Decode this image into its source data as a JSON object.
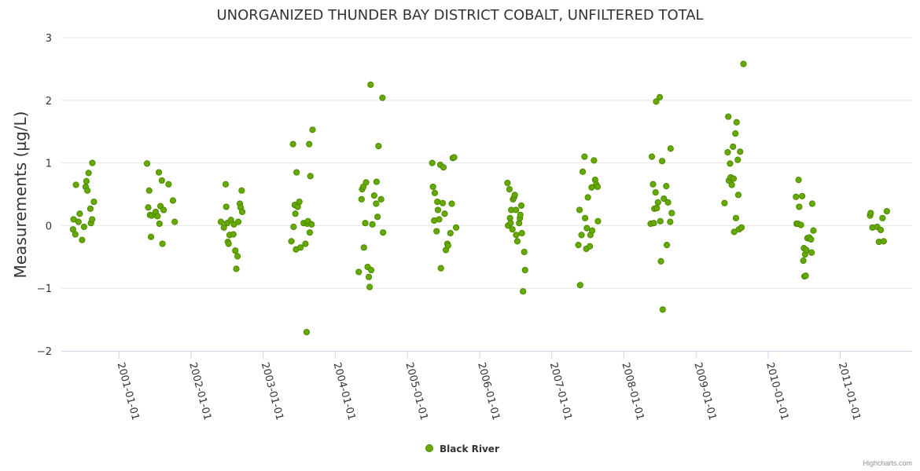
{
  "chart_data": {
    "type": "scatter",
    "title": "UNORGANIZED THUNDER BAY DISTRICT COBALT, UNFILTERED TOTAL",
    "ylabel": "Measurements (µg/L)",
    "xlabel": "",
    "ylim": [
      -2,
      3
    ],
    "yticks": [
      3,
      2,
      1,
      0,
      -1,
      -2
    ],
    "ytick_labels": [
      "3",
      "2",
      "1",
      "0",
      "−1",
      "−2"
    ],
    "xlim": [
      "2000-03-15",
      "2011-12-31"
    ],
    "xticks": [
      "2001-01-01",
      "2002-01-01",
      "2003-01-01",
      "2004-01-01",
      "2005-01-01",
      "2006-01-01",
      "2007-01-01",
      "2008-01-01",
      "2009-01-01",
      "2010-01-01",
      "2011-01-01"
    ],
    "grid": "horizontal",
    "legend_position": "bottom-center",
    "series": [
      {
        "name": "Black River",
        "color": "#66aa00",
        "points": [
          [
            "2000-05-13",
            -0.06
          ],
          [
            "2000-05-16",
            0.1
          ],
          [
            "2000-05-25",
            -0.14
          ],
          [
            "2000-05-28",
            0.65
          ],
          [
            "2000-06-10",
            0.06
          ],
          [
            "2000-06-16",
            0.19
          ],
          [
            "2000-06-28",
            -0.23
          ],
          [
            "2000-07-08",
            -0.02
          ],
          [
            "2000-07-16",
            0.62
          ],
          [
            "2000-07-20",
            0.71
          ],
          [
            "2000-07-25",
            0.56
          ],
          [
            "2000-07-31",
            0.84
          ],
          [
            "2000-08-09",
            0.27
          ],
          [
            "2000-08-12",
            0.04
          ],
          [
            "2000-08-18",
            0.1
          ],
          [
            "2000-08-19",
            1.0
          ],
          [
            "2000-08-27",
            0.38
          ],
          [
            "2001-05-23",
            0.99
          ],
          [
            "2001-05-29",
            0.29
          ],
          [
            "2001-06-03",
            0.56
          ],
          [
            "2001-06-07",
            0.17
          ],
          [
            "2001-06-12",
            -0.18
          ],
          [
            "2001-06-16",
            0.16
          ],
          [
            "2001-07-03",
            0.18
          ],
          [
            "2001-07-06",
            0.22
          ],
          [
            "2001-07-15",
            0.15
          ],
          [
            "2001-07-22",
            0.85
          ],
          [
            "2001-07-25",
            0.03
          ],
          [
            "2001-07-30",
            0.31
          ],
          [
            "2001-08-06",
            0.72
          ],
          [
            "2001-08-09",
            -0.29
          ],
          [
            "2001-08-15",
            0.25
          ],
          [
            "2001-09-09",
            0.66
          ],
          [
            "2001-10-01",
            0.4
          ],
          [
            "2001-10-10",
            0.06
          ],
          [
            "2002-06-01",
            0.06
          ],
          [
            "2002-06-16",
            -0.03
          ],
          [
            "2002-06-25",
            0.66
          ],
          [
            "2002-06-28",
            0.3
          ],
          [
            "2002-07-03",
            0.04
          ],
          [
            "2002-07-06",
            -0.26
          ],
          [
            "2002-07-10",
            -0.29
          ],
          [
            "2002-07-15",
            -0.15
          ],
          [
            "2002-07-22",
            0.09
          ],
          [
            "2002-08-03",
            -0.14
          ],
          [
            "2002-08-06",
            0.02
          ],
          [
            "2002-08-13",
            -0.4
          ],
          [
            "2002-08-18",
            -0.69
          ],
          [
            "2002-08-24",
            -0.49
          ],
          [
            "2002-08-28",
            0.06
          ],
          [
            "2002-09-05",
            0.35
          ],
          [
            "2002-09-09",
            0.29
          ],
          [
            "2002-09-14",
            0.56
          ],
          [
            "2002-09-17",
            0.22
          ],
          [
            "2003-05-24",
            -0.25
          ],
          [
            "2003-06-01",
            1.3
          ],
          [
            "2003-06-04",
            -0.02
          ],
          [
            "2003-06-10",
            0.33
          ],
          [
            "2003-06-13",
            0.19
          ],
          [
            "2003-06-16",
            -0.38
          ],
          [
            "2003-06-19",
            0.85
          ],
          [
            "2003-06-25",
            0.3
          ],
          [
            "2003-07-03",
            0.38
          ],
          [
            "2003-07-09",
            -0.35
          ],
          [
            "2003-07-25",
            0.04
          ],
          [
            "2003-08-03",
            -0.29
          ],
          [
            "2003-08-09",
            -1.7
          ],
          [
            "2003-08-12",
            0.03
          ],
          [
            "2003-08-16",
            0.07
          ],
          [
            "2003-08-22",
            1.3
          ],
          [
            "2003-08-25",
            -0.11
          ],
          [
            "2003-08-28",
            0.79
          ],
          [
            "2003-09-03",
            0.02
          ],
          [
            "2003-09-08",
            1.53
          ],
          [
            "2004-04-29",
            -0.74
          ],
          [
            "2004-05-13",
            0.42
          ],
          [
            "2004-05-16",
            0.58
          ],
          [
            "2004-05-22",
            0.62
          ],
          [
            "2004-05-25",
            -0.35
          ],
          [
            "2004-06-01",
            0.04
          ],
          [
            "2004-06-05",
            0.69
          ],
          [
            "2004-06-13",
            -0.66
          ],
          [
            "2004-06-19",
            -0.82
          ],
          [
            "2004-06-23",
            -0.98
          ],
          [
            "2004-06-28",
            2.25
          ],
          [
            "2004-07-01",
            -0.71
          ],
          [
            "2004-07-07",
            0.02
          ],
          [
            "2004-07-16",
            0.48
          ],
          [
            "2004-07-26",
            0.35
          ],
          [
            "2004-07-28",
            0.7
          ],
          [
            "2004-08-02",
            0.14
          ],
          [
            "2004-08-07",
            1.27
          ],
          [
            "2004-08-20",
            0.42
          ],
          [
            "2004-08-27",
            2.04
          ],
          [
            "2004-08-30",
            -0.11
          ],
          [
            "2005-05-06",
            1.0
          ],
          [
            "2005-05-10",
            0.62
          ],
          [
            "2005-05-16",
            0.08
          ],
          [
            "2005-05-19",
            0.52
          ],
          [
            "2005-05-28",
            -0.09
          ],
          [
            "2005-06-01",
            0.38
          ],
          [
            "2005-06-04",
            0.25
          ],
          [
            "2005-06-10",
            0.1
          ],
          [
            "2005-06-16",
            0.97
          ],
          [
            "2005-06-19",
            -0.68
          ],
          [
            "2005-06-28",
            0.36
          ],
          [
            "2005-07-02",
            0.93
          ],
          [
            "2005-07-08",
            0.19
          ],
          [
            "2005-07-14",
            -0.39
          ],
          [
            "2005-07-22",
            -0.29
          ],
          [
            "2005-07-25",
            -0.32
          ],
          [
            "2005-08-06",
            -0.12
          ],
          [
            "2005-08-13",
            0.35
          ],
          [
            "2005-08-18",
            1.08
          ],
          [
            "2005-08-25",
            1.09
          ],
          [
            "2005-09-04",
            -0.03
          ],
          [
            "2006-05-22",
            0.68
          ],
          [
            "2006-05-25",
            0.0
          ],
          [
            "2006-06-01",
            0.58
          ],
          [
            "2006-06-04",
            0.12
          ],
          [
            "2006-06-07",
            0.04
          ],
          [
            "2006-06-10",
            0.25
          ],
          [
            "2006-06-16",
            -0.06
          ],
          [
            "2006-06-19",
            0.42
          ],
          [
            "2006-06-24",
            0.45
          ],
          [
            "2006-06-28",
            0.49
          ],
          [
            "2006-07-04",
            0.25
          ],
          [
            "2006-07-05",
            -0.15
          ],
          [
            "2006-07-11",
            -0.25
          ],
          [
            "2006-07-20",
            0.04
          ],
          [
            "2006-07-24",
            0.12
          ],
          [
            "2006-07-26",
            0.17
          ],
          [
            "2006-07-31",
            0.32
          ],
          [
            "2006-08-03",
            -0.12
          ],
          [
            "2006-08-09",
            -1.05
          ],
          [
            "2006-08-15",
            -0.42
          ],
          [
            "2006-08-19",
            -0.71
          ],
          [
            "2007-05-16",
            -0.31
          ],
          [
            "2007-05-22",
            0.25
          ],
          [
            "2007-05-25",
            -0.95
          ],
          [
            "2007-06-01",
            -0.15
          ],
          [
            "2007-06-07",
            0.86
          ],
          [
            "2007-06-16",
            1.1
          ],
          [
            "2007-06-19",
            0.12
          ],
          [
            "2007-06-25",
            -0.37
          ],
          [
            "2007-06-28",
            -0.04
          ],
          [
            "2007-07-03",
            0.45
          ],
          [
            "2007-07-13",
            -0.33
          ],
          [
            "2007-07-16",
            -0.15
          ],
          [
            "2007-07-22",
            0.61
          ],
          [
            "2007-07-25",
            -0.08
          ],
          [
            "2007-08-03",
            1.04
          ],
          [
            "2007-08-09",
            0.73
          ],
          [
            "2007-08-14",
            0.66
          ],
          [
            "2007-08-21",
            0.62
          ],
          [
            "2008-08-23",
            0.06
          ]
        ]
      }
    ]
  },
  "extra_points": [
    [
      "2007-08-23",
      0.07
    ],
    [
      "2008-05-16",
      0.03
    ],
    [
      "2008-05-22",
      1.1
    ],
    [
      "2008-05-28",
      0.66
    ],
    [
      "2008-06-01",
      0.04
    ],
    [
      "2008-06-04",
      0.27
    ],
    [
      "2008-06-10",
      0.53
    ],
    [
      "2008-06-13",
      1.98
    ],
    [
      "2008-06-16",
      0.28
    ],
    [
      "2008-06-22",
      0.37
    ],
    [
      "2008-07-01",
      2.05
    ],
    [
      "2008-07-04",
      0.07
    ],
    [
      "2008-07-07",
      -0.57
    ],
    [
      "2008-07-13",
      1.03
    ],
    [
      "2008-07-16",
      -1.34
    ],
    [
      "2008-07-22",
      0.43
    ],
    [
      "2008-08-03",
      0.63
    ],
    [
      "2008-08-06",
      -0.31
    ],
    [
      "2008-08-12",
      0.37
    ],
    [
      "2008-08-25",
      1.23
    ],
    [
      "2008-08-31",
      0.2
    ],
    [
      "2009-05-25",
      0.36
    ],
    [
      "2009-06-10",
      1.17
    ],
    [
      "2009-06-13",
      1.74
    ],
    [
      "2009-06-16",
      0.72
    ],
    [
      "2009-06-22",
      0.99
    ],
    [
      "2009-06-25",
      0.77
    ],
    [
      "2009-07-01",
      0.65
    ],
    [
      "2009-07-07",
      1.26
    ],
    [
      "2009-07-10",
      0.75
    ],
    [
      "2009-07-13",
      -0.1
    ],
    [
      "2009-07-19",
      1.47
    ],
    [
      "2009-07-22",
      0.12
    ],
    [
      "2009-07-25",
      1.65
    ],
    [
      "2009-07-31",
      1.05
    ],
    [
      "2009-08-03",
      0.49
    ],
    [
      "2009-08-06",
      -0.06
    ],
    [
      "2009-08-12",
      1.18
    ],
    [
      "2009-08-19",
      -0.03
    ],
    [
      "2009-08-29",
      2.58
    ],
    [
      "2010-05-22",
      0.46
    ],
    [
      "2010-05-25",
      0.03
    ],
    [
      "2010-06-01",
      0.03
    ],
    [
      "2010-06-04",
      0.73
    ],
    [
      "2010-06-07",
      0.3
    ],
    [
      "2010-06-16",
      0.01
    ],
    [
      "2010-06-22",
      0.47
    ],
    [
      "2010-06-28",
      -0.56
    ],
    [
      "2010-07-01",
      -0.36
    ],
    [
      "2010-07-04",
      -0.81
    ],
    [
      "2010-07-07",
      -0.46
    ],
    [
      "2010-07-10",
      -0.8
    ],
    [
      "2010-07-13",
      -0.39
    ],
    [
      "2010-07-19",
      -0.2
    ],
    [
      "2010-07-28",
      -0.19
    ],
    [
      "2010-08-06",
      -0.22
    ],
    [
      "2010-08-09",
      -0.43
    ],
    [
      "2010-08-12",
      0.35
    ],
    [
      "2010-08-18",
      -0.08
    ],
    [
      "2011-06-01",
      0.16
    ],
    [
      "2011-06-04",
      0.2
    ],
    [
      "2011-06-13",
      -0.03
    ],
    [
      "2011-07-07",
      -0.02
    ],
    [
      "2011-07-16",
      -0.26
    ],
    [
      "2011-07-25",
      -0.07
    ],
    [
      "2011-08-03",
      0.12
    ],
    [
      "2011-08-09",
      -0.25
    ],
    [
      "2011-08-25",
      0.23
    ]
  ],
  "legend": {
    "label": "Black River",
    "color": "#66aa00"
  },
  "credits": "Highcharts.com"
}
